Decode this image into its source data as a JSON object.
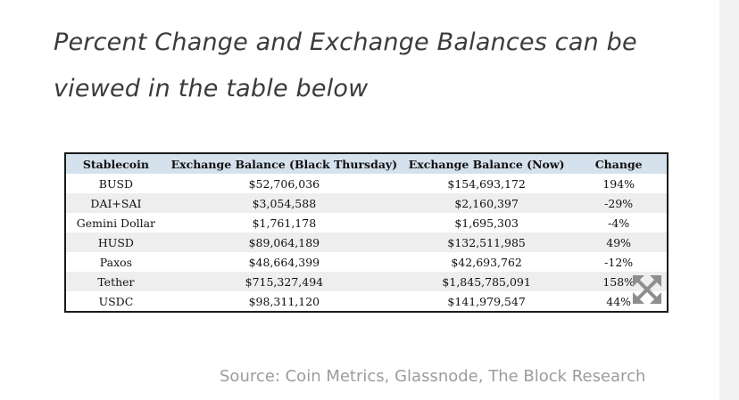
{
  "headline": "Percent Change and Exchange Balances can be viewed in the table below",
  "table": {
    "headers": [
      "Stablecoin",
      "Exchange Balance (Black Thursday)",
      "Exchange Balance (Now)",
      "Change"
    ],
    "rows": [
      [
        "BUSD",
        "$52,706,036",
        "$154,693,172",
        "194%"
      ],
      [
        "DAI+SAI",
        "$3,054,588",
        "$2,160,397",
        "-29%"
      ],
      [
        "Gemini Dollar",
        "$1,761,178",
        "$1,695,303",
        "-4%"
      ],
      [
        "HUSD",
        "$89,064,189",
        "$132,511,985",
        "49%"
      ],
      [
        "Paxos",
        "$48,664,399",
        "$42,693,762",
        "-12%"
      ],
      [
        "Tether",
        "$715,327,494",
        "$1,845,785,091",
        "158%"
      ],
      [
        "USDC",
        "$98,311,120",
        "$141,979,547",
        "44%"
      ]
    ]
  },
  "icons": {
    "expand": "expand-arrows-icon"
  },
  "source": "Source: Coin Metrics, Glassnode, The Block Research"
}
